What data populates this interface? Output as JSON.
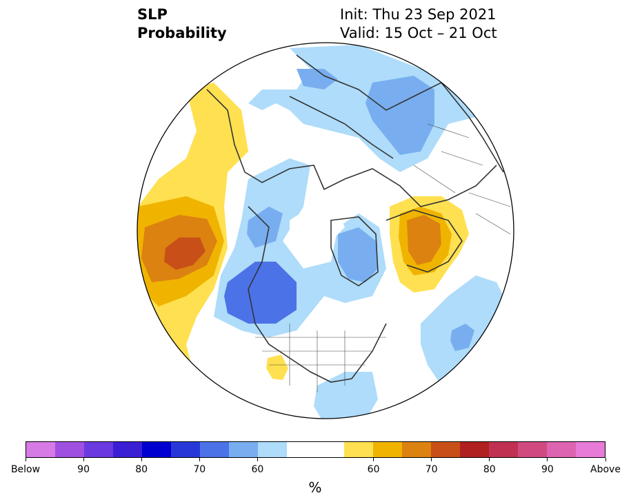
{
  "header": {
    "variable": "SLP",
    "product": "Probability",
    "init": "Init: Thu 23 Sep 2021",
    "valid": "Valid: 15 Oct – 21 Oct"
  },
  "map": {
    "projection": "north-polar-stereographic",
    "colors": {
      "ocean_land": "#ffffff",
      "coastline": "#333333",
      "border": "#444444"
    }
  },
  "colorbar": {
    "unit": "%",
    "colors": [
      "#d67ae6",
      "#a050e0",
      "#6a3ae0",
      "#3b1fd4",
      "#0000d0",
      "#2838d8",
      "#4c72e8",
      "#78aef0",
      "#aedcfa",
      "#ffffff",
      "#ffffff",
      "#ffe050",
      "#f0b400",
      "#dc8210",
      "#c85018",
      "#b02020",
      "#c03050",
      "#d04a80",
      "#dc64b0",
      "#e87ad8"
    ],
    "tick_labels": [
      "Below",
      "90",
      "80",
      "70",
      "60",
      "60",
      "70",
      "80",
      "90",
      "Above"
    ]
  }
}
